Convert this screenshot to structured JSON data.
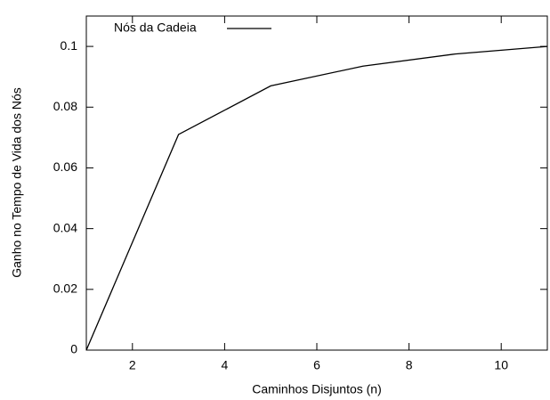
{
  "chart_data": {
    "type": "line",
    "xlabel": "Caminhos Disjuntos (n)",
    "ylabel": "Ganho no Tempo de Vida dos Nós",
    "x": [
      1,
      3,
      5,
      7,
      9,
      11
    ],
    "series": [
      {
        "name": "Nós da Cadeia",
        "color": "#000000",
        "values": [
          0,
          0.071,
          0.087,
          0.0935,
          0.0975,
          0.1
        ]
      }
    ],
    "xlim": [
      1,
      11
    ],
    "xticks": [
      2,
      4,
      6,
      8,
      10
    ],
    "ylim": [
      0,
      0.11
    ],
    "yticks": [
      0,
      0.02,
      0.04,
      0.06,
      0.08,
      0.1
    ],
    "legend": "upper left",
    "grid": false
  }
}
